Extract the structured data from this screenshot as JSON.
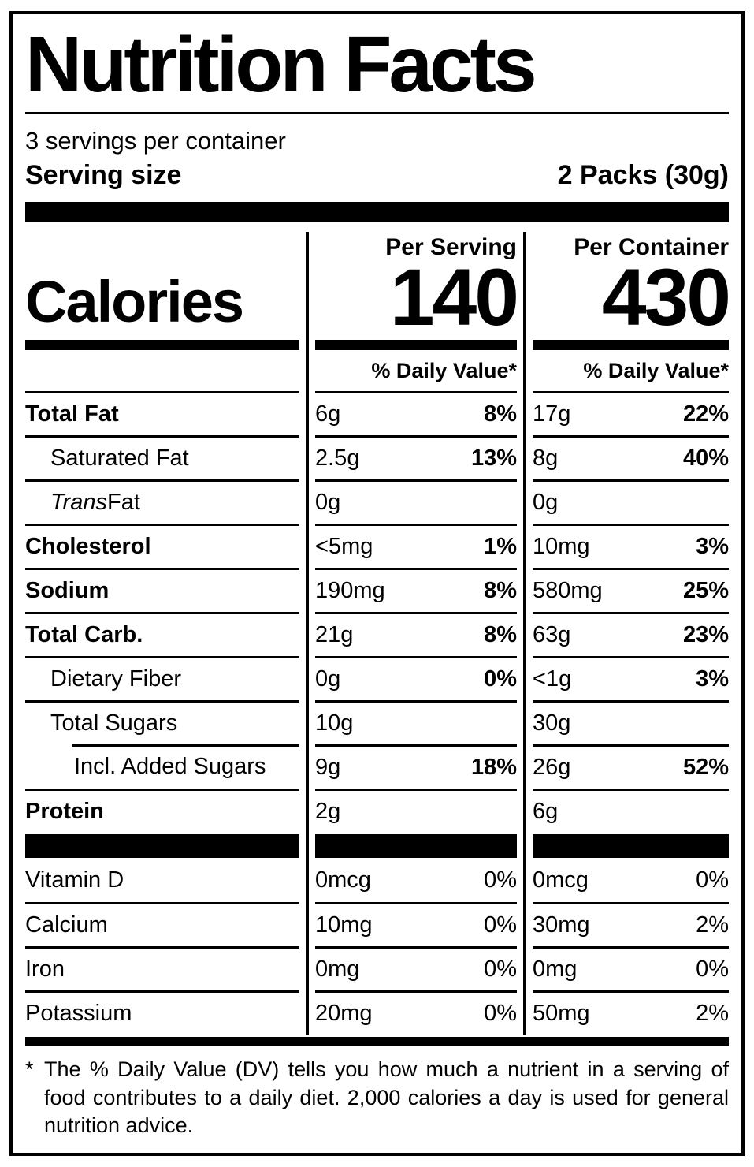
{
  "title": "Nutrition Facts",
  "servings_per_container": "3 servings per container",
  "serving_size": {
    "label": "Serving size",
    "value": "2 Packs (30g)"
  },
  "calories": {
    "label": "Calories",
    "serving": {
      "header": "Per Serving",
      "value": "140"
    },
    "container": {
      "header": "Per Container",
      "value": "430"
    },
    "dv_header": "% Daily Value*"
  },
  "nutrients": [
    {
      "name": "Total Fat",
      "name_italic": "",
      "indent": 0,
      "bold": true,
      "inset_line": false,
      "serving": {
        "amount": "6g",
        "dv": "8%"
      },
      "container": {
        "amount": "17g",
        "dv": "22%"
      }
    },
    {
      "name": "Saturated Fat",
      "name_italic": "",
      "indent": 1,
      "bold": false,
      "inset_line": false,
      "serving": {
        "amount": "2.5g",
        "dv": "13%"
      },
      "container": {
        "amount": "8g",
        "dv": "40%"
      }
    },
    {
      "name": " Fat",
      "name_italic": "Trans",
      "indent": 1,
      "bold": false,
      "inset_line": false,
      "serving": {
        "amount": "0g",
        "dv": ""
      },
      "container": {
        "amount": "0g",
        "dv": ""
      }
    },
    {
      "name": "Cholesterol",
      "name_italic": "",
      "indent": 0,
      "bold": true,
      "inset_line": false,
      "serving": {
        "amount": "<5mg",
        "dv": "1%"
      },
      "container": {
        "amount": "10mg",
        "dv": "3%"
      }
    },
    {
      "name": "Sodium",
      "name_italic": "",
      "indent": 0,
      "bold": true,
      "inset_line": false,
      "serving": {
        "amount": "190mg",
        "dv": "8%"
      },
      "container": {
        "amount": "580mg",
        "dv": "25%"
      }
    },
    {
      "name": "Total Carb.",
      "name_italic": "",
      "indent": 0,
      "bold": true,
      "inset_line": false,
      "serving": {
        "amount": "21g",
        "dv": "8%"
      },
      "container": {
        "amount": "63g",
        "dv": "23%"
      }
    },
    {
      "name": "Dietary Fiber",
      "name_italic": "",
      "indent": 1,
      "bold": false,
      "inset_line": false,
      "serving": {
        "amount": "0g",
        "dv": "0%"
      },
      "container": {
        "amount": "<1g",
        "dv": "3%"
      }
    },
    {
      "name": "Total Sugars",
      "name_italic": "",
      "indent": 1,
      "bold": false,
      "inset_line": false,
      "serving": {
        "amount": "10g",
        "dv": ""
      },
      "container": {
        "amount": "30g",
        "dv": ""
      }
    },
    {
      "name": "Incl. Added Sugars",
      "name_italic": "",
      "indent": 2,
      "bold": false,
      "inset_line": true,
      "serving": {
        "amount": "9g",
        "dv": "18%"
      },
      "container": {
        "amount": "26g",
        "dv": "52%"
      }
    },
    {
      "name": "Protein",
      "name_italic": "",
      "indent": 0,
      "bold": true,
      "inset_line": false,
      "serving": {
        "amount": "2g",
        "dv": ""
      },
      "container": {
        "amount": "6g",
        "dv": ""
      }
    }
  ],
  "vitamins": [
    {
      "name": "Vitamin D",
      "serving": {
        "amount": "0mcg",
        "dv": "0%"
      },
      "container": {
        "amount": "0mcg",
        "dv": "0%"
      }
    },
    {
      "name": "Calcium",
      "serving": {
        "amount": "10mg",
        "dv": "0%"
      },
      "container": {
        "amount": "30mg",
        "dv": "2%"
      }
    },
    {
      "name": "Iron",
      "serving": {
        "amount": "0mg",
        "dv": "0%"
      },
      "container": {
        "amount": "0mg",
        "dv": "0%"
      }
    },
    {
      "name": "Potassium",
      "serving": {
        "amount": "20mg",
        "dv": "0%"
      },
      "container": {
        "amount": "50mg",
        "dv": "2%"
      }
    }
  ],
  "footnote": {
    "asterisk": "*",
    "text": "The % Daily Value (DV) tells you how much a nutrient in a serving of food contributes to a daily diet. 2,000 calories a day is used for general nutrition advice."
  },
  "colors": {
    "text": "#000000",
    "background": "#ffffff"
  }
}
